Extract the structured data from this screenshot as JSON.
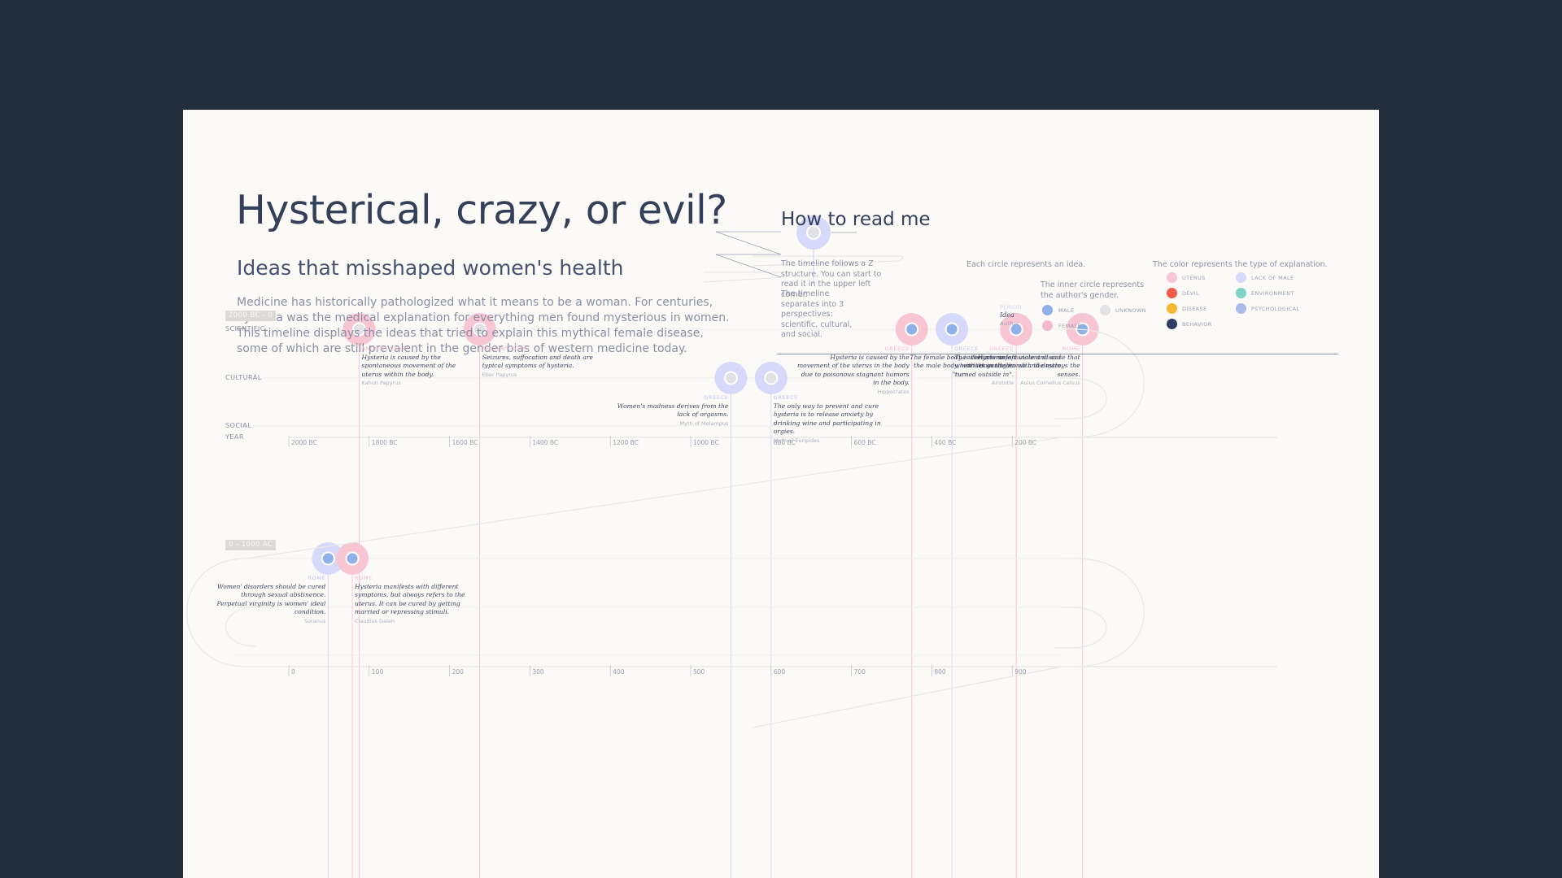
{
  "title": "Hysterical, crazy, or evil?",
  "subtitle": "Ideas that misshaped women's health",
  "intro": "Medicine has historically pathologized what it means to be a woman. For centuries, hysteria was the medical explanation for everything men found mysterious in women. This timeline displays the ideas that tried to explain this mythical female disease, some of which are still prevalent in the gender bias of western medicine today.",
  "legend": {
    "title": "How to read me",
    "z_structure": "The timeline follows a Z structure. You can start to read it in the upper left corner.",
    "perspectives": "The timeline separates into 3 perspectives: scientific, cultural, and social.",
    "circle_note": "Each circle represents an idea.",
    "example_period": "PERIOD",
    "example_idea": "Idea",
    "example_author": "Author",
    "inner_circle_note": "The inner circle represents the author's gender.",
    "genders": [
      {
        "label": "MALE",
        "color": "#8fb0e8"
      },
      {
        "label": "UNKNOWN",
        "color": "#e2e2e4"
      },
      {
        "label": "FEMALE",
        "color": "#f6b9cb"
      }
    ],
    "color_note": "The color represents the type of explanation.",
    "types": [
      {
        "label": "UTERUS",
        "color": "#f8c5d3"
      },
      {
        "label": "LACK OF MALE",
        "color": "#d7d9fb"
      },
      {
        "label": "DEVIL",
        "color": "#ef5d4c"
      },
      {
        "label": "ENVIRONMENT",
        "color": "#7fd3c7"
      },
      {
        "label": "DISEASE",
        "color": "#f6b731"
      },
      {
        "label": "PSYCHOLOGICAL",
        "color": "#a9bbe6"
      },
      {
        "label": "BEHAVIOR",
        "color": "#2f3d66"
      }
    ]
  },
  "tracks": [
    "SCIENTIFIC",
    "CULTURAL",
    "SOCIAL",
    "YEAR"
  ],
  "rows": [
    {
      "period": "2000 BC - 0",
      "ticks": [
        "2000 BC",
        "1800 BC",
        "1600 BC",
        "1400 BC",
        "1200 BC",
        "1000 BC",
        "800 BC",
        "600 BC",
        "400 BC",
        "200 BC"
      ],
      "ideas": [
        {
          "year": -1825,
          "track": "SCIENTIFIC",
          "type": "UTERUS",
          "gender": "UNKNOWN",
          "place": "ANCIENT EGYPT",
          "text": "Hysteria is caused by the spontaneous movement of the uterus within the body.",
          "author": "Kahun Papyrus",
          "align": "left"
        },
        {
          "year": -1525,
          "track": "SCIENTIFIC",
          "type": "UTERUS",
          "gender": "UNKNOWN",
          "place": "ANCIENT EGYPT",
          "text": "Seizures, suffocation and death are typical symptoms of hysteria.",
          "author": "Eber Papyrus",
          "align": "left"
        },
        {
          "year": -900,
          "track": "CULTURAL",
          "type": "LACK OF MALE",
          "gender": "UNKNOWN",
          "place": "GREECE",
          "text": "Women's madness derives from the lack of orgasms.",
          "author": "Myth of Melampus",
          "align": "right"
        },
        {
          "year": -800,
          "track": "CULTURAL",
          "type": "LACK OF MALE",
          "gender": "UNKNOWN",
          "place": "GREECE",
          "text": "The only way to prevent and cure hysteria is to release anxiety by drinking wine and participating in orgies.",
          "author": "Myth of Euripides",
          "align": "left"
        },
        {
          "year": -450,
          "track": "SCIENTIFIC",
          "type": "UTERUS",
          "gender": "MALE",
          "place": "GREECE",
          "text": "Hysteria is caused by the movement of the uterus in the body due to poisonous stagnant humors in the body.",
          "author": "Hippocrates",
          "align": "right"
        },
        {
          "year": -350,
          "track": "SCIENTIFIC",
          "type": "LACK OF MALE",
          "gender": "MALE",
          "place": "GREECE",
          "text": "The uterus is unfortunate and sad when it doesn't join with the male.",
          "author": "Plato",
          "align": "left"
        },
        {
          "year": -190,
          "track": "SCIENTIFIC",
          "type": "UTERUS",
          "gender": "MALE",
          "place": "GREECE",
          "text": "The female body is the inverse of the male body, with its genitalia \"turned outside in\".",
          "author": "Aristotle",
          "align": "right"
        },
        {
          "year": -25,
          "track": "SCIENTIFIC",
          "type": "UTERUS",
          "gender": "MALE",
          "place": "ROME",
          "text": "Hysteria is a violent disease that arises in the womb and destroys the senses.",
          "author": "Aulus Cornelius Celsus",
          "align": "right"
        }
      ]
    },
    {
      "period": "0 - 1000 AC",
      "ticks": [
        "0",
        "100",
        "200",
        "300",
        "400",
        "500",
        "600",
        "700",
        "800",
        "900"
      ],
      "ideas": [
        {
          "year": 98,
          "track": "SCIENTIFIC",
          "type": "LACK OF MALE",
          "gender": "MALE",
          "place": "ROME",
          "text": "Women' disorders should be cured through sexual abstinence. Perpetual virginity is women' ideal condition.",
          "author": "Soranus",
          "align": "right"
        },
        {
          "year": 158,
          "track": "SCIENTIFIC",
          "type": "UTERUS",
          "gender": "MALE",
          "place": "ROME",
          "text": "Hysteria manifests with different symptoms, but always refers to the uterus. It can be cured by getting married or repressing stimuli.",
          "author": "Claudius Galen",
          "align": "left"
        }
      ]
    }
  ]
}
